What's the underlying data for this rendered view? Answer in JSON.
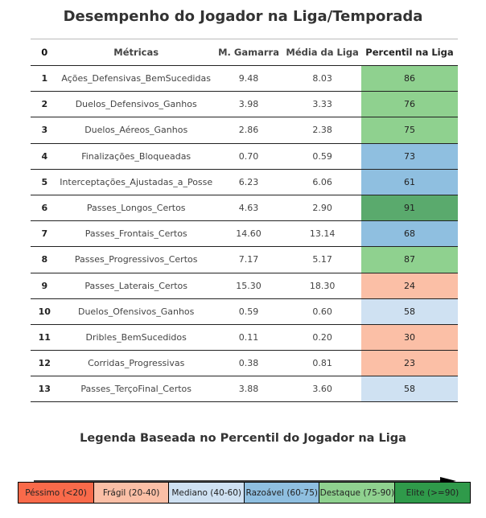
{
  "title": "Desempenho do Jogador na Liga/Temporada",
  "table": {
    "headers": {
      "index": "0",
      "metric": "Métricas",
      "player": "M. Gamarra",
      "league": "Média da Liga",
      "percentile": "Percentil na Liga"
    },
    "rows": [
      {
        "idx": "1",
        "metric": "Ações_Defensivas_BemSucedidas",
        "player": "9.48",
        "league": "8.03",
        "pct": "86",
        "color": "#8fd18f"
      },
      {
        "idx": "2",
        "metric": "Duelos_Defensivos_Ganhos",
        "player": "3.98",
        "league": "3.33",
        "pct": "76",
        "color": "#8fd18f"
      },
      {
        "idx": "3",
        "metric": "Duelos_Aéreos_Ganhos",
        "player": "2.86",
        "league": "2.38",
        "pct": "75",
        "color": "#8fd18f"
      },
      {
        "idx": "4",
        "metric": "Finalizações_Bloqueadas",
        "player": "0.70",
        "league": "0.59",
        "pct": "73",
        "color": "#8fbfe0"
      },
      {
        "idx": "5",
        "metric": "Interceptações_Ajustadas_a_Posse",
        "player": "6.23",
        "league": "6.06",
        "pct": "61",
        "color": "#8fbfe0"
      },
      {
        "idx": "6",
        "metric": "Passes_Longos_Certos",
        "player": "4.63",
        "league": "2.90",
        "pct": "91",
        "color": "#5aaa6d"
      },
      {
        "idx": "7",
        "metric": "Passes_Frontais_Certos",
        "player": "14.60",
        "league": "13.14",
        "pct": "68",
        "color": "#8fbfe0"
      },
      {
        "idx": "8",
        "metric": "Passes_Progressivos_Certos",
        "player": "7.17",
        "league": "5.17",
        "pct": "87",
        "color": "#8fd18f"
      },
      {
        "idx": "9",
        "metric": "Passes_Laterais_Certos",
        "player": "15.30",
        "league": "18.30",
        "pct": "24",
        "color": "#fbbfa6"
      },
      {
        "idx": "10",
        "metric": "Duelos_Ofensivos_Ganhos",
        "player": "0.59",
        "league": "0.60",
        "pct": "58",
        "color": "#cfe1f2"
      },
      {
        "idx": "11",
        "metric": "Dribles_BemSucedidos",
        "player": "0.11",
        "league": "0.20",
        "pct": "30",
        "color": "#fbbfa6"
      },
      {
        "idx": "12",
        "metric": "Corridas_Progressivas",
        "player": "0.38",
        "league": "0.81",
        "pct": "23",
        "color": "#fbbfa6"
      },
      {
        "idx": "13",
        "metric": "Passes_TerçoFinal_Certos",
        "player": "3.88",
        "league": "3.60",
        "pct": "58",
        "color": "#cfe1f2"
      }
    ]
  },
  "legend": {
    "title": "Legenda Baseada no Percentil do Jogador na Liga",
    "items": [
      {
        "label": "Péssimo (<20)",
        "color": "#f96a4a",
        "flex": 94
      },
      {
        "label": "Frágil (20-40)",
        "color": "#fbbfa6",
        "flex": 94
      },
      {
        "label": "Mediano (40-60)",
        "color": "#cfe1f2",
        "flex": 94
      },
      {
        "label": "Razoável (60-75)",
        "color": "#8fbfe0",
        "flex": 94
      },
      {
        "label": "Destaque (75-90)",
        "color": "#8fd18f",
        "flex": 94
      },
      {
        "label": "Elite (>=90)",
        "color": "#2f9a4a",
        "flex": 94
      }
    ]
  },
  "chart_data": {
    "type": "table",
    "title": "Desempenho do Jogador na Liga/Temporada",
    "columns": [
      "0",
      "Métricas",
      "M. Gamarra",
      "Média da Liga",
      "Percentil na Liga"
    ],
    "categories": [
      "Ações_Defensivas_BemSucedidas",
      "Duelos_Defensivos_Ganhos",
      "Duelos_Aéreos_Ganhos",
      "Finalizações_Bloqueadas",
      "Interceptações_Ajustadas_a_Posse",
      "Passes_Longos_Certos",
      "Passes_Frontais_Certos",
      "Passes_Progressivos_Certos",
      "Passes_Laterais_Certos",
      "Duelos_Ofensivos_Ganhos",
      "Dribles_BemSucedidos",
      "Corridas_Progressivas",
      "Passes_TerçoFinal_Certos"
    ],
    "series": [
      {
        "name": "M. Gamarra",
        "values": [
          9.48,
          3.98,
          2.86,
          0.7,
          6.23,
          4.63,
          14.6,
          7.17,
          15.3,
          0.59,
          0.11,
          0.38,
          3.88
        ]
      },
      {
        "name": "Média da Liga",
        "values": [
          8.03,
          3.33,
          2.38,
          0.59,
          6.06,
          2.9,
          13.14,
          5.17,
          18.3,
          0.6,
          0.2,
          0.81,
          3.6
        ]
      },
      {
        "name": "Percentil na Liga",
        "values": [
          86,
          76,
          75,
          73,
          61,
          91,
          68,
          87,
          24,
          58,
          30,
          23,
          58
        ]
      }
    ]
  }
}
